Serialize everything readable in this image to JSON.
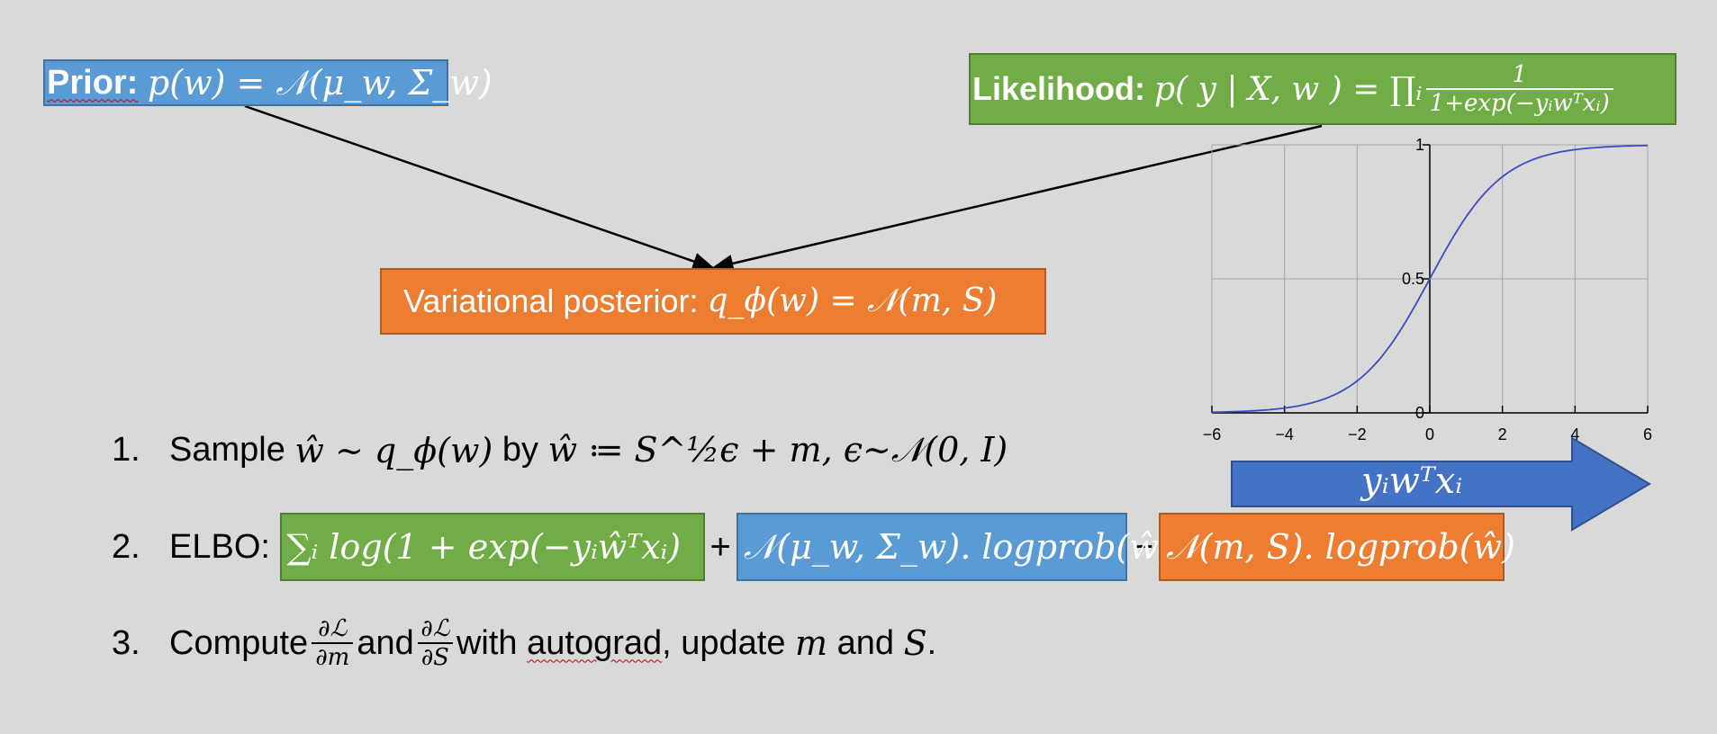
{
  "prior": {
    "label": "Prior:",
    "formula": "p(w) = 𝒩(μ_w, Σ_w)"
  },
  "likelihood": {
    "label": "Likelihood:",
    "formula_lhs": "p( y | X, w ) = ∏ᵢ",
    "frac_num": "1",
    "frac_den": "1+exp(−yᵢwᵀxᵢ)"
  },
  "posterior": {
    "label": "Variational posterior:",
    "formula": "q_ϕ(w) = 𝒩(m, S)"
  },
  "steps": [
    {
      "index": "1.",
      "text_a": "Sample",
      "math_a": "ŵ ∼ q_ϕ(w)",
      "text_b": "by",
      "math_b": "ŵ ≔ S^½ϵ + m, ϵ∼𝒩(0, I)"
    },
    {
      "index": "2.",
      "label": "ELBO:",
      "term_sum": "∑ᵢ log(1 + exp(−yᵢŵᵀxᵢ)",
      "plus": "+",
      "term_prior": "𝒩(μ_w, Σ_w). logprob(ŵ)",
      "minus": "−",
      "term_post": "𝒩(m, S). logprob(ŵ)"
    },
    {
      "index": "3.",
      "text_a": "Compute",
      "frac1_num": "∂ℒ",
      "frac1_den": "∂m",
      "text_b": "and",
      "frac2_num": "∂ℒ",
      "frac2_den": "∂S",
      "text_c": "with",
      "autograd": "autograd",
      "text_d": ", update",
      "math_m": "m",
      "text_e": "and",
      "math_s": "S",
      "text_f": "."
    }
  ],
  "arrow_label": "yᵢwᵀxᵢ",
  "colors": {
    "background": "#d9d9d9",
    "blue": "#5b9bd5",
    "green": "#70ad47",
    "orange": "#ed7d31",
    "arrow_blue": "#4472c4",
    "curve": "#3b4cc0"
  },
  "chart_data": {
    "type": "line",
    "function": "logistic sigmoid",
    "x": [
      -6,
      -5,
      -4,
      -3,
      -2,
      -1,
      0,
      1,
      2,
      3,
      4,
      5,
      6
    ],
    "series": [
      {
        "values": [
          0.0025,
          0.0067,
          0.018,
          0.047,
          0.119,
          0.269,
          0.5,
          0.731,
          0.881,
          0.953,
          0.982,
          0.993,
          0.9975
        ]
      }
    ],
    "x_ticks": [
      "−6",
      "−4",
      "−2",
      "0",
      "2",
      "4",
      "6"
    ],
    "y_ticks": [
      "0",
      "0.5",
      "1"
    ],
    "xlim": [
      -6,
      6
    ],
    "ylim": [
      0,
      1
    ],
    "grid": true
  }
}
